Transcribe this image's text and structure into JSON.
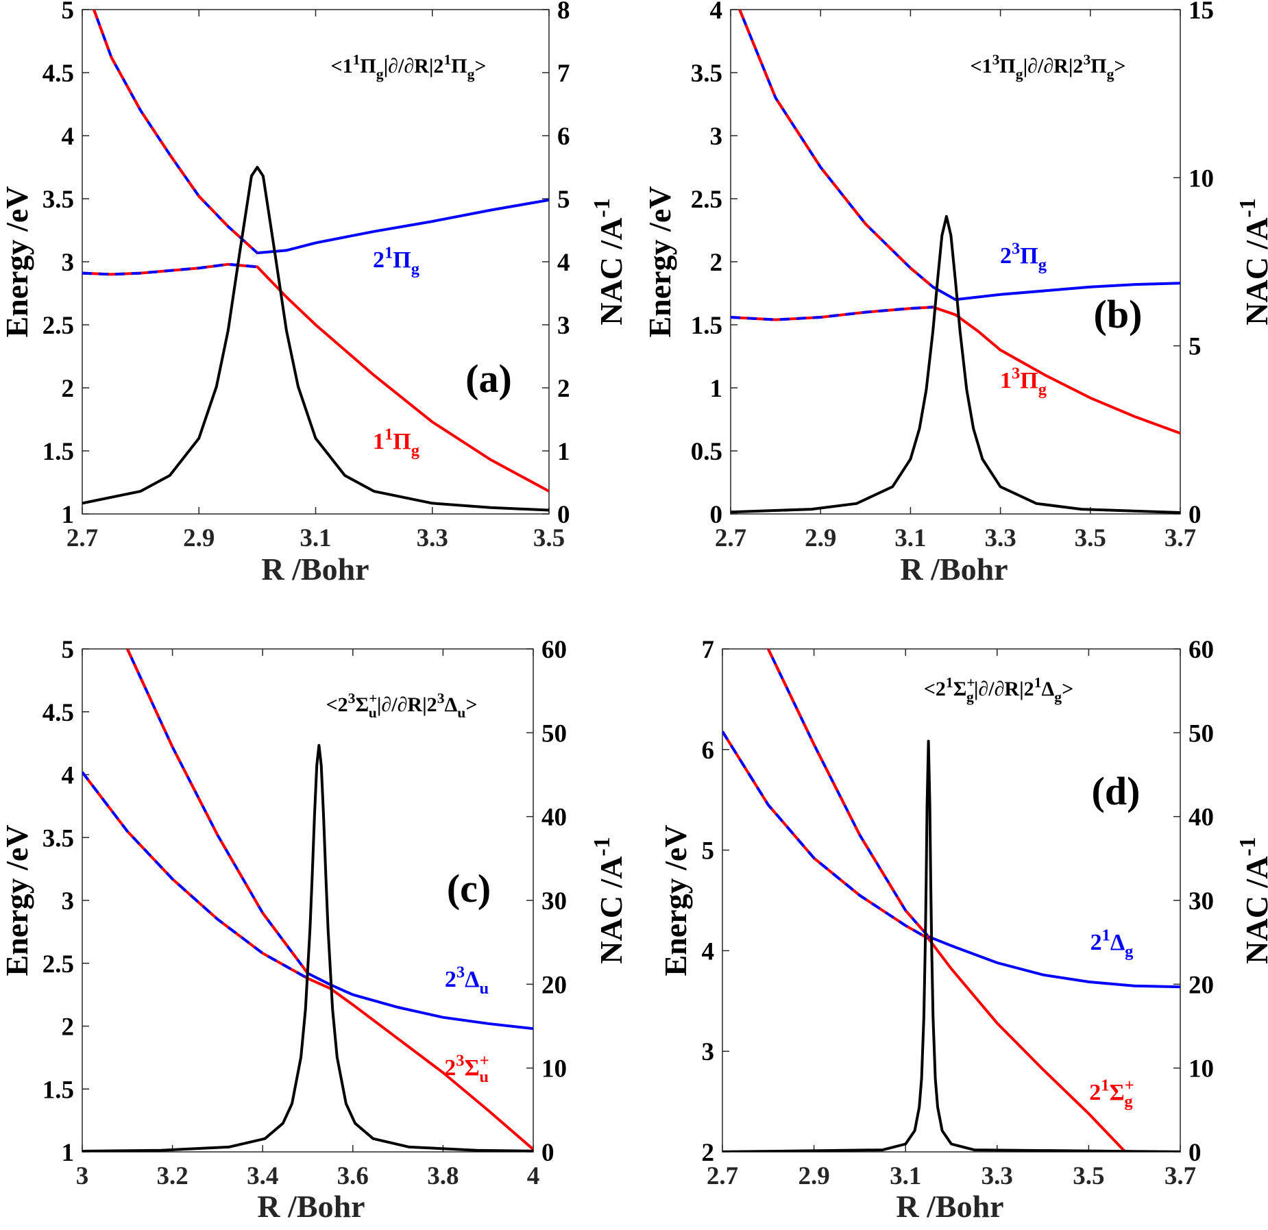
{
  "colors": {
    "upper": "#0000ff",
    "lower": "#ff0000",
    "nac": "#000000"
  },
  "chart_data": [
    {
      "type": "line",
      "panel_label": "(a)",
      "xlabel": "R /Bohr",
      "ylabel": "Energy /eV",
      "y2label": "NAC /A",
      "y2label_sup": "-1",
      "xlim": [
        2.7,
        3.5
      ],
      "ylim": [
        1,
        5
      ],
      "y2lim": [
        0,
        8
      ],
      "xticks": [
        "2.7",
        "2.9",
        "3.1",
        "3.3",
        "3.5"
      ],
      "yticks": [
        "1",
        "1.5",
        "2",
        "2.5",
        "3",
        "3.5",
        "4",
        "4.5",
        "5"
      ],
      "y2ticks": [
        "0",
        "1",
        "2",
        "3",
        "4",
        "5",
        "6",
        "7",
        "8"
      ],
      "crossing": 3.0,
      "title": [
        {
          "t": "<1"
        },
        {
          "sup": "1"
        },
        {
          "t": "Π"
        },
        {
          "sub": "g"
        },
        {
          "t": "|∂/∂R|2"
        },
        {
          "sup": "1"
        },
        {
          "t": "Π"
        },
        {
          "sub": "g"
        },
        {
          "t": ">"
        }
      ],
      "series": [
        {
          "name": "2¹Πg",
          "role": "upper",
          "label": [
            {
              "t": "2"
            },
            {
              "sup": "1"
            },
            {
              "t": "Π"
            },
            {
              "sub": "g"
            }
          ],
          "x": [
            2.72,
            2.75,
            2.8,
            2.85,
            2.9,
            2.95,
            3.0,
            3.05,
            3.1,
            3.2,
            3.3,
            3.4,
            3.5
          ],
          "y": [
            5.0,
            4.62,
            4.2,
            3.85,
            3.52,
            3.28,
            3.07,
            3.09,
            3.15,
            3.24,
            3.32,
            3.41,
            3.49
          ]
        },
        {
          "name": "1¹Πg",
          "role": "lower",
          "label": [
            {
              "t": "1"
            },
            {
              "sup": "1"
            },
            {
              "t": "Π"
            },
            {
              "sub": "g"
            }
          ],
          "x": [
            2.7,
            2.75,
            2.8,
            2.9,
            2.95,
            3.0,
            3.05,
            3.1,
            3.2,
            3.3,
            3.4,
            3.5
          ],
          "y": [
            2.91,
            2.9,
            2.91,
            2.95,
            2.98,
            2.96,
            2.72,
            2.5,
            2.1,
            1.73,
            1.43,
            1.18
          ]
        },
        {
          "name": "NAC",
          "role": "nac",
          "x": [
            2.7,
            2.8,
            2.85,
            2.9,
            2.93,
            2.95,
            2.97,
            2.99,
            3.0,
            3.01,
            3.03,
            3.05,
            3.07,
            3.1,
            3.15,
            3.2,
            3.3,
            3.4,
            3.5
          ],
          "y": [
            0.17,
            0.36,
            0.61,
            1.2,
            2.02,
            2.91,
            4.15,
            5.36,
            5.5,
            5.36,
            4.15,
            2.91,
            2.02,
            1.2,
            0.61,
            0.36,
            0.17,
            0.1,
            0.06
          ]
        }
      ]
    },
    {
      "type": "line",
      "panel_label": "(b)",
      "xlabel": "R /Bohr",
      "ylabel": "Energy /eV",
      "y2label": "NAC /A",
      "y2label_sup": "-1",
      "xlim": [
        2.7,
        3.7
      ],
      "ylim": [
        0,
        4
      ],
      "y2lim": [
        0,
        15
      ],
      "xticks": [
        "2.7",
        "2.9",
        "3.1",
        "3.3",
        "3.5",
        "3.7"
      ],
      "yticks": [
        "0",
        "0.5",
        "1",
        "1.5",
        "2",
        "2.5",
        "3",
        "3.5",
        "4"
      ],
      "y2ticks": [
        "0",
        "5",
        "10",
        "15"
      ],
      "crossing": 3.18,
      "title": [
        {
          "t": "<1"
        },
        {
          "sup": "3"
        },
        {
          "t": "Π"
        },
        {
          "sub": "g"
        },
        {
          "t": "|∂/∂R|2"
        },
        {
          "sup": "3"
        },
        {
          "t": "Π"
        },
        {
          "sub": "g"
        },
        {
          "t": ">"
        }
      ],
      "series": [
        {
          "name": "2³Πg",
          "role": "upper",
          "label": [
            {
              "t": "2"
            },
            {
              "sup": "3"
            },
            {
              "t": "Π"
            },
            {
              "sub": "g"
            }
          ],
          "x": [
            2.72,
            2.8,
            2.9,
            3.0,
            3.1,
            3.15,
            3.2,
            3.3,
            3.4,
            3.5,
            3.6,
            3.7
          ],
          "y": [
            4.0,
            3.3,
            2.75,
            2.3,
            1.95,
            1.8,
            1.7,
            1.74,
            1.77,
            1.8,
            1.82,
            1.83
          ]
        },
        {
          "name": "1³Πg",
          "role": "lower",
          "label": [
            {
              "t": "1"
            },
            {
              "sup": "3"
            },
            {
              "t": "Π"
            },
            {
              "sub": "g"
            }
          ],
          "x": [
            2.7,
            2.8,
            2.9,
            3.0,
            3.1,
            3.15,
            3.2,
            3.25,
            3.3,
            3.4,
            3.5,
            3.6,
            3.7
          ],
          "y": [
            1.56,
            1.54,
            1.56,
            1.6,
            1.63,
            1.64,
            1.58,
            1.45,
            1.3,
            1.1,
            0.92,
            0.77,
            0.64
          ]
        },
        {
          "name": "NAC",
          "role": "nac",
          "x": [
            2.7,
            2.88,
            2.98,
            3.06,
            3.1,
            3.12,
            3.135,
            3.15,
            3.16,
            3.17,
            3.18,
            3.19,
            3.2,
            3.21,
            3.225,
            3.24,
            3.26,
            3.3,
            3.38,
            3.48,
            3.7
          ],
          "y": [
            0.055,
            0.14,
            0.31,
            0.81,
            1.63,
            2.54,
            3.69,
            5.45,
            6.93,
            8.28,
            8.85,
            8.28,
            6.93,
            5.45,
            3.69,
            2.54,
            1.63,
            0.81,
            0.31,
            0.14,
            0.04
          ]
        }
      ]
    },
    {
      "type": "line",
      "panel_label": "(c)",
      "xlabel": "R /Bohr",
      "ylabel": "Energy /eV",
      "y2label": "NAC /A",
      "y2label_sup": "-1",
      "xlim": [
        3,
        4
      ],
      "ylim": [
        1,
        5
      ],
      "y2lim": [
        0,
        60
      ],
      "xticks": [
        "3",
        "3.2",
        "3.4",
        "3.6",
        "3.8",
        "4"
      ],
      "yticks": [
        "1",
        "1.5",
        "2",
        "2.5",
        "3",
        "3.5",
        "4",
        "4.5",
        "5"
      ],
      "y2ticks": [
        "0",
        "10",
        "20",
        "30",
        "40",
        "50",
        "60"
      ],
      "crossing": 3.52,
      "title": [
        {
          "t": "<2"
        },
        {
          "sup": "3"
        },
        {
          "t": "Σ"
        },
        {
          "supsub": [
            "+",
            "u"
          ]
        },
        {
          "t": "|∂/∂R|2"
        },
        {
          "sup": "3"
        },
        {
          "t": "Δ"
        },
        {
          "sub": "u"
        },
        {
          "t": ">"
        }
      ],
      "series": [
        {
          "name": "2³Δu",
          "role": "upper",
          "label": [
            {
              "t": "2"
            },
            {
              "sup": "3"
            },
            {
              "t": "Δ"
            },
            {
              "sub": "u"
            }
          ],
          "x": [
            3.1,
            3.2,
            3.3,
            3.4,
            3.5,
            3.55,
            3.6,
            3.7,
            3.8,
            3.9,
            4.0
          ],
          "y": [
            5.0,
            4.22,
            3.52,
            2.9,
            2.42,
            2.33,
            2.25,
            2.15,
            2.07,
            2.02,
            1.98
          ]
        },
        {
          "name": "2³Σu+",
          "role": "lower",
          "label": [
            {
              "t": "2"
            },
            {
              "sup": "3"
            },
            {
              "t": "Σ"
            },
            {
              "supsub": [
                "+",
                "u"
              ]
            }
          ],
          "x": [
            3.0,
            3.1,
            3.2,
            3.3,
            3.4,
            3.5,
            3.55,
            3.6,
            3.7,
            3.8,
            3.9,
            4.0
          ],
          "y": [
            4.02,
            3.55,
            3.17,
            2.85,
            2.58,
            2.38,
            2.3,
            2.17,
            1.9,
            1.63,
            1.33,
            1.02
          ]
        },
        {
          "name": "NAC",
          "role": "nac",
          "x": [
            3.0,
            3.175,
            3.325,
            3.405,
            3.445,
            3.465,
            3.485,
            3.495,
            3.505,
            3.51,
            3.515,
            3.52,
            3.525,
            3.53,
            3.535,
            3.54,
            3.545,
            3.555,
            3.565,
            3.585,
            3.605,
            3.645,
            3.725,
            3.875,
            4.0
          ],
          "y": [
            0.085,
            0.19,
            0.58,
            1.58,
            3.41,
            5.75,
            11.3,
            17.0,
            26.6,
            33.1,
            40.2,
            46.1,
            48.5,
            46.1,
            40.2,
            33.1,
            26.6,
            17.0,
            11.3,
            5.75,
            3.41,
            1.58,
            0.58,
            0.19,
            0.1
          ]
        }
      ]
    },
    {
      "type": "line",
      "panel_label": "(d)",
      "xlabel": "R /Bohr",
      "ylabel": "Energy /eV",
      "y2label": "NAC /A",
      "y2label_sup": "-1",
      "xlim": [
        2.7,
        3.7
      ],
      "ylim": [
        2,
        7
      ],
      "y2lim": [
        0,
        60
      ],
      "xticks": [
        "2.7",
        "2.9",
        "3.1",
        "3.3",
        "3.5",
        "3.7"
      ],
      "yticks": [
        "2",
        "3",
        "4",
        "5",
        "6",
        "7"
      ],
      "y2ticks": [
        "0",
        "10",
        "20",
        "30",
        "40",
        "50",
        "60"
      ],
      "crossing": 3.15,
      "title": [
        {
          "t": "<2"
        },
        {
          "sup": "1"
        },
        {
          "t": "Σ"
        },
        {
          "supsub": [
            "+",
            "g"
          ]
        },
        {
          "t": "|∂/∂R|2"
        },
        {
          "sup": "1"
        },
        {
          "t": "Δ"
        },
        {
          "sub": "g"
        },
        {
          "t": ">"
        }
      ],
      "series": [
        {
          "name": "2¹Δg",
          "role": "upper",
          "label": [
            {
              "t": "2"
            },
            {
              "sup": "1"
            },
            {
              "t": "Δ"
            },
            {
              "sub": "g"
            }
          ],
          "x": [
            2.8,
            2.9,
            3.0,
            3.1,
            3.15,
            3.2,
            3.3,
            3.4,
            3.5,
            3.6,
            3.7
          ],
          "y": [
            7.0,
            6.05,
            5.15,
            4.4,
            4.14,
            4.05,
            3.88,
            3.76,
            3.69,
            3.65,
            3.64
          ]
        },
        {
          "name": "2¹Σg+",
          "role": "lower",
          "label": [
            {
              "t": "2"
            },
            {
              "sup": "1"
            },
            {
              "t": "Σ"
            },
            {
              "supsub": [
                "+",
                "g"
              ]
            }
          ],
          "x": [
            2.7,
            2.8,
            2.9,
            3.0,
            3.1,
            3.15,
            3.2,
            3.3,
            3.4,
            3.5,
            3.58
          ],
          "y": [
            6.18,
            5.45,
            4.92,
            4.55,
            4.25,
            4.12,
            3.82,
            3.28,
            2.82,
            2.38,
            2.0
          ]
        },
        {
          "name": "NAC",
          "role": "nac",
          "x": [
            2.7,
            3.05,
            3.1,
            3.12,
            3.13,
            3.135,
            3.14,
            3.143,
            3.145,
            3.147,
            3.15,
            3.153,
            3.155,
            3.157,
            3.16,
            3.165,
            3.17,
            3.18,
            3.2,
            3.25,
            3.7
          ],
          "y": [
            0.01,
            0.24,
            0.94,
            2.53,
            5.35,
            8.77,
            16.1,
            24.5,
            32.4,
            41.4,
            49.0,
            41.4,
            32.4,
            24.5,
            16.1,
            8.77,
            5.35,
            2.53,
            0.94,
            0.24,
            0.01
          ]
        }
      ]
    }
  ]
}
